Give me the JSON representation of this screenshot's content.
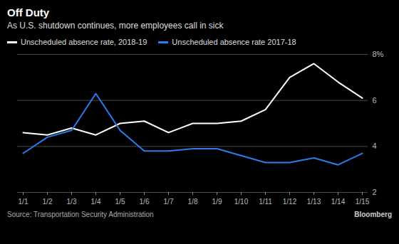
{
  "chart_data": {
    "type": "line",
    "title": "Off Duty",
    "subtitle": "As U.S. shutdown continues, more employees call in sick",
    "source": "Source: Transportation Security Administration",
    "credit": "Bloomberg",
    "categories": [
      "1/1",
      "1/2",
      "1/3",
      "1/4",
      "1/5",
      "1/6",
      "1/7",
      "1/8",
      "1/9",
      "1/10",
      "1/11",
      "1/12",
      "1/13",
      "1/14",
      "1/15"
    ],
    "series": [
      {
        "name": "Unscheduled absence rate, 2018-19",
        "color": "#ffffff",
        "values": [
          4.6,
          4.5,
          4.8,
          4.5,
          5.0,
          5.1,
          4.6,
          5.0,
          5.0,
          5.1,
          5.6,
          7.0,
          7.6,
          6.8,
          6.1
        ]
      },
      {
        "name": "Unscheduled absence rate 2017-18",
        "color": "#2b7de9",
        "values": [
          3.7,
          4.4,
          4.7,
          6.3,
          4.7,
          3.8,
          3.8,
          3.9,
          3.9,
          3.6,
          3.3,
          3.3,
          3.5,
          3.2,
          3.7
        ]
      }
    ],
    "ylim": [
      2,
      8
    ],
    "yticks": [
      2,
      4,
      6,
      {
        "value": 8,
        "label": "8%"
      }
    ],
    "grid": true,
    "legend": "top"
  }
}
